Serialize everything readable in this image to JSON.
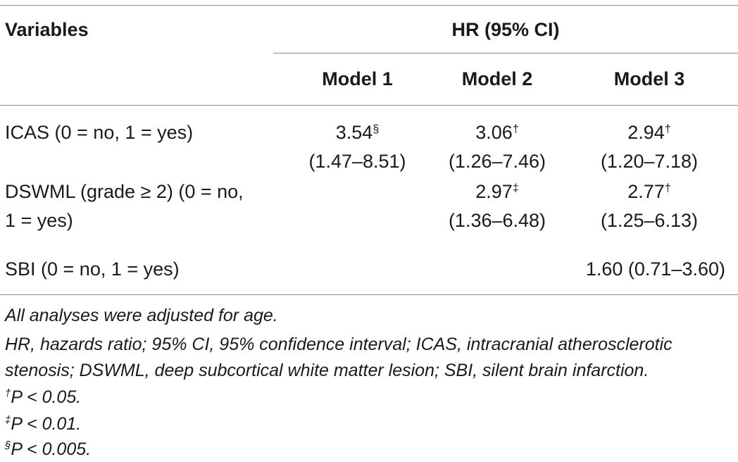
{
  "table": {
    "header": {
      "variables": "Variables",
      "group": "HR (95% CI)",
      "model1": "Model 1",
      "model2": "Model 2",
      "model3": "Model 3"
    },
    "rows": [
      {
        "label": "ICAS (0 = no, 1 = yes)",
        "m1_value": "3.54",
        "m1_sup": "§",
        "m1_ci": "(1.47–8.51)",
        "m2_value": "3.06",
        "m2_sup": "†",
        "m2_ci": "(1.26–7.46)",
        "m3_value": "2.94",
        "m3_sup": "†",
        "m3_ci": "(1.20–7.18)"
      },
      {
        "label_line1": "DSWML (grade ≥ 2) (0 = no,",
        "label_line2": "1 = yes)",
        "m2_value": "2.97",
        "m2_sup": "‡",
        "m2_ci": "(1.36–6.48)",
        "m3_value": "2.77",
        "m3_sup": "†",
        "m3_ci": "(1.25–6.13)"
      },
      {
        "label": "SBI (0 = no, 1 = yes)",
        "m3_full": "1.60 (0.71–3.60)"
      }
    ]
  },
  "footnotes": {
    "adjusted": "All analyses were adjusted for age.",
    "abbrev_line1": "HR, hazards ratio; 95% CI, 95% confidence interval; ICAS, intracranial atherosclerotic",
    "abbrev_line2": "stenosis; DSWML, deep subcortical white matter lesion; SBI, silent brain infarction.",
    "p1_mark": "†",
    "p1_text": "P < 0.05.",
    "p2_mark": "‡",
    "p2_text": "P < 0.01.",
    "p3_mark": "§",
    "p3_text": "P < 0.005."
  }
}
